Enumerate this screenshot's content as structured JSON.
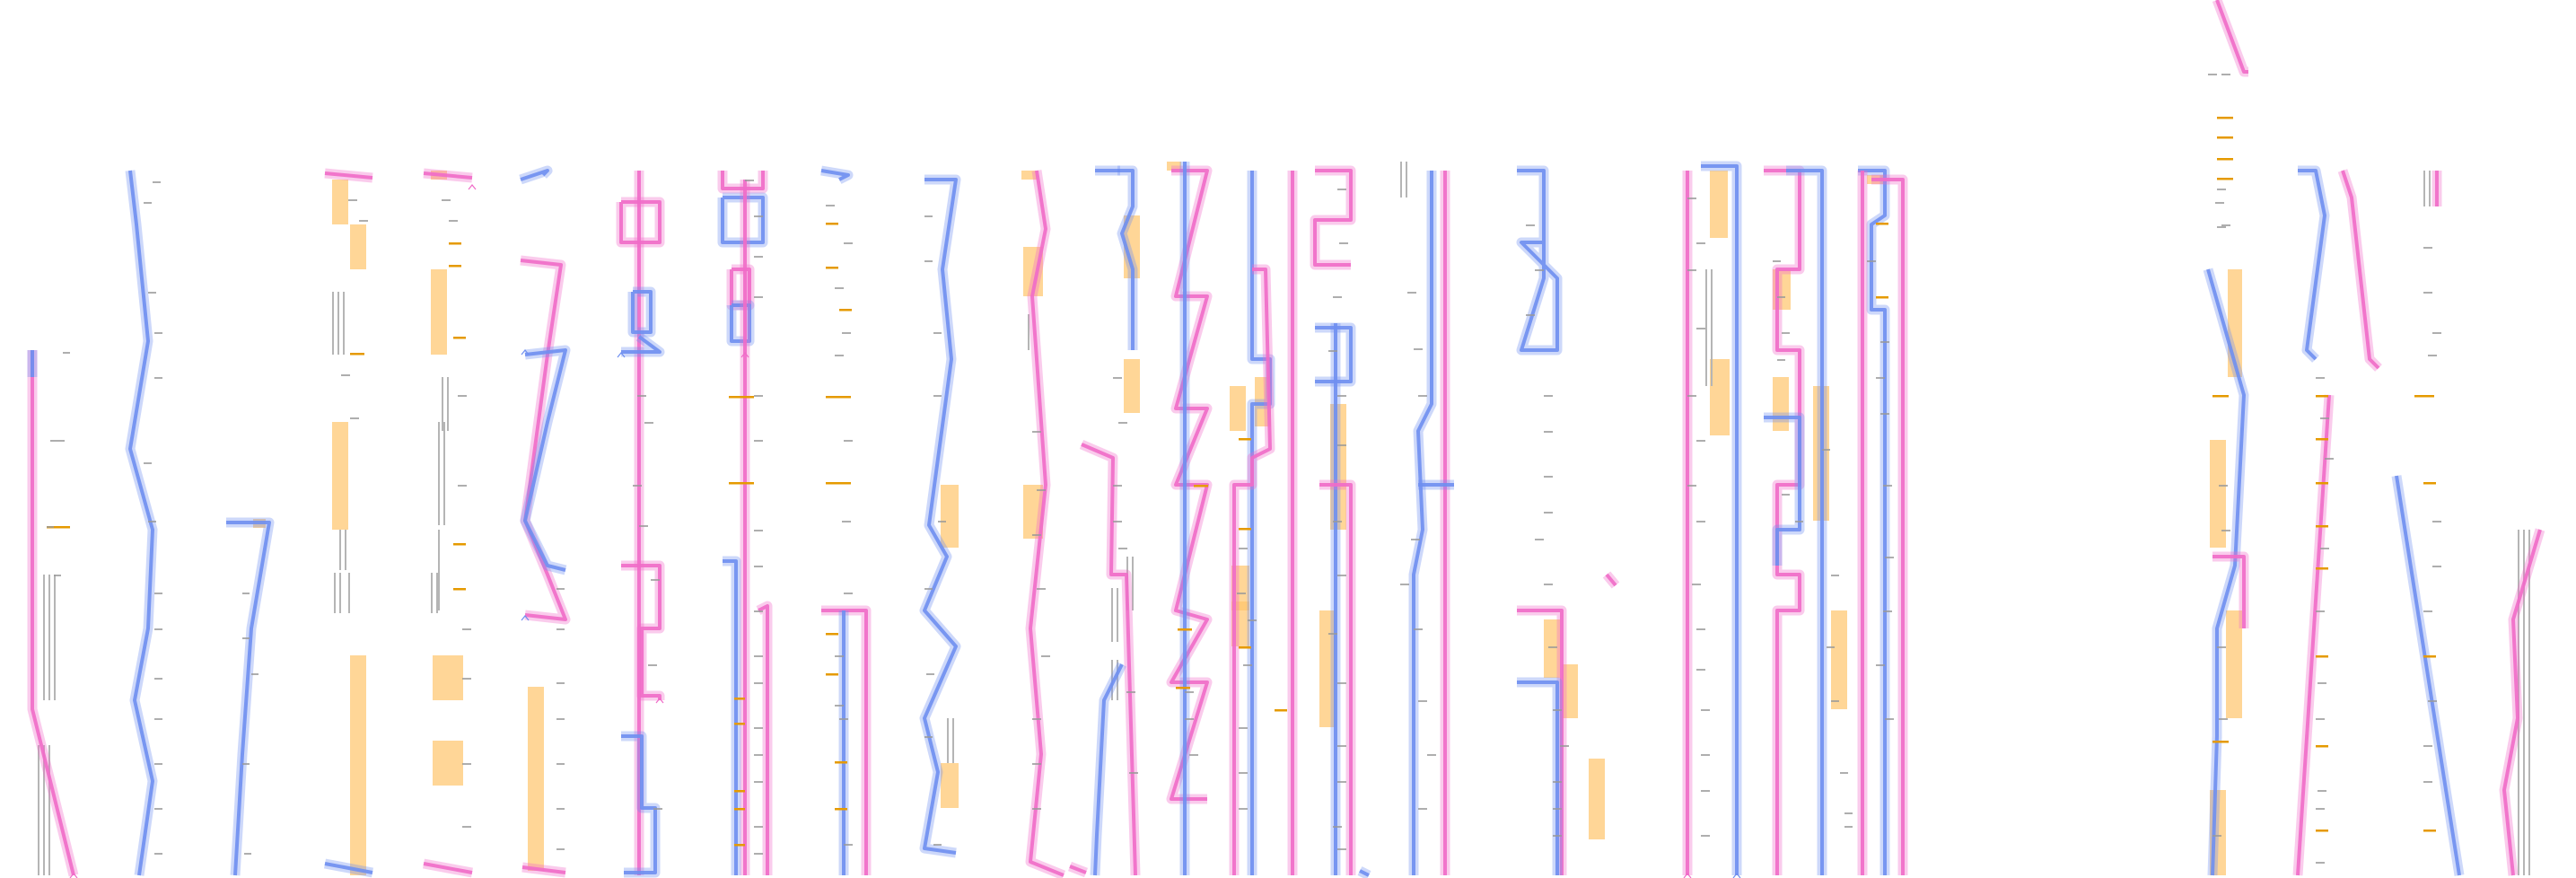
{
  "colors": {
    "background": "#ffffff",
    "blue_route": "#6f8ff0",
    "pink_route": "#f06bc8",
    "highlight_block": "#ffc46b",
    "gray_bar": "#b5b5b5",
    "orange_tick": "#e59a00",
    "label_gray": "#9a9a9a"
  },
  "tiny_labels_note": ""
}
